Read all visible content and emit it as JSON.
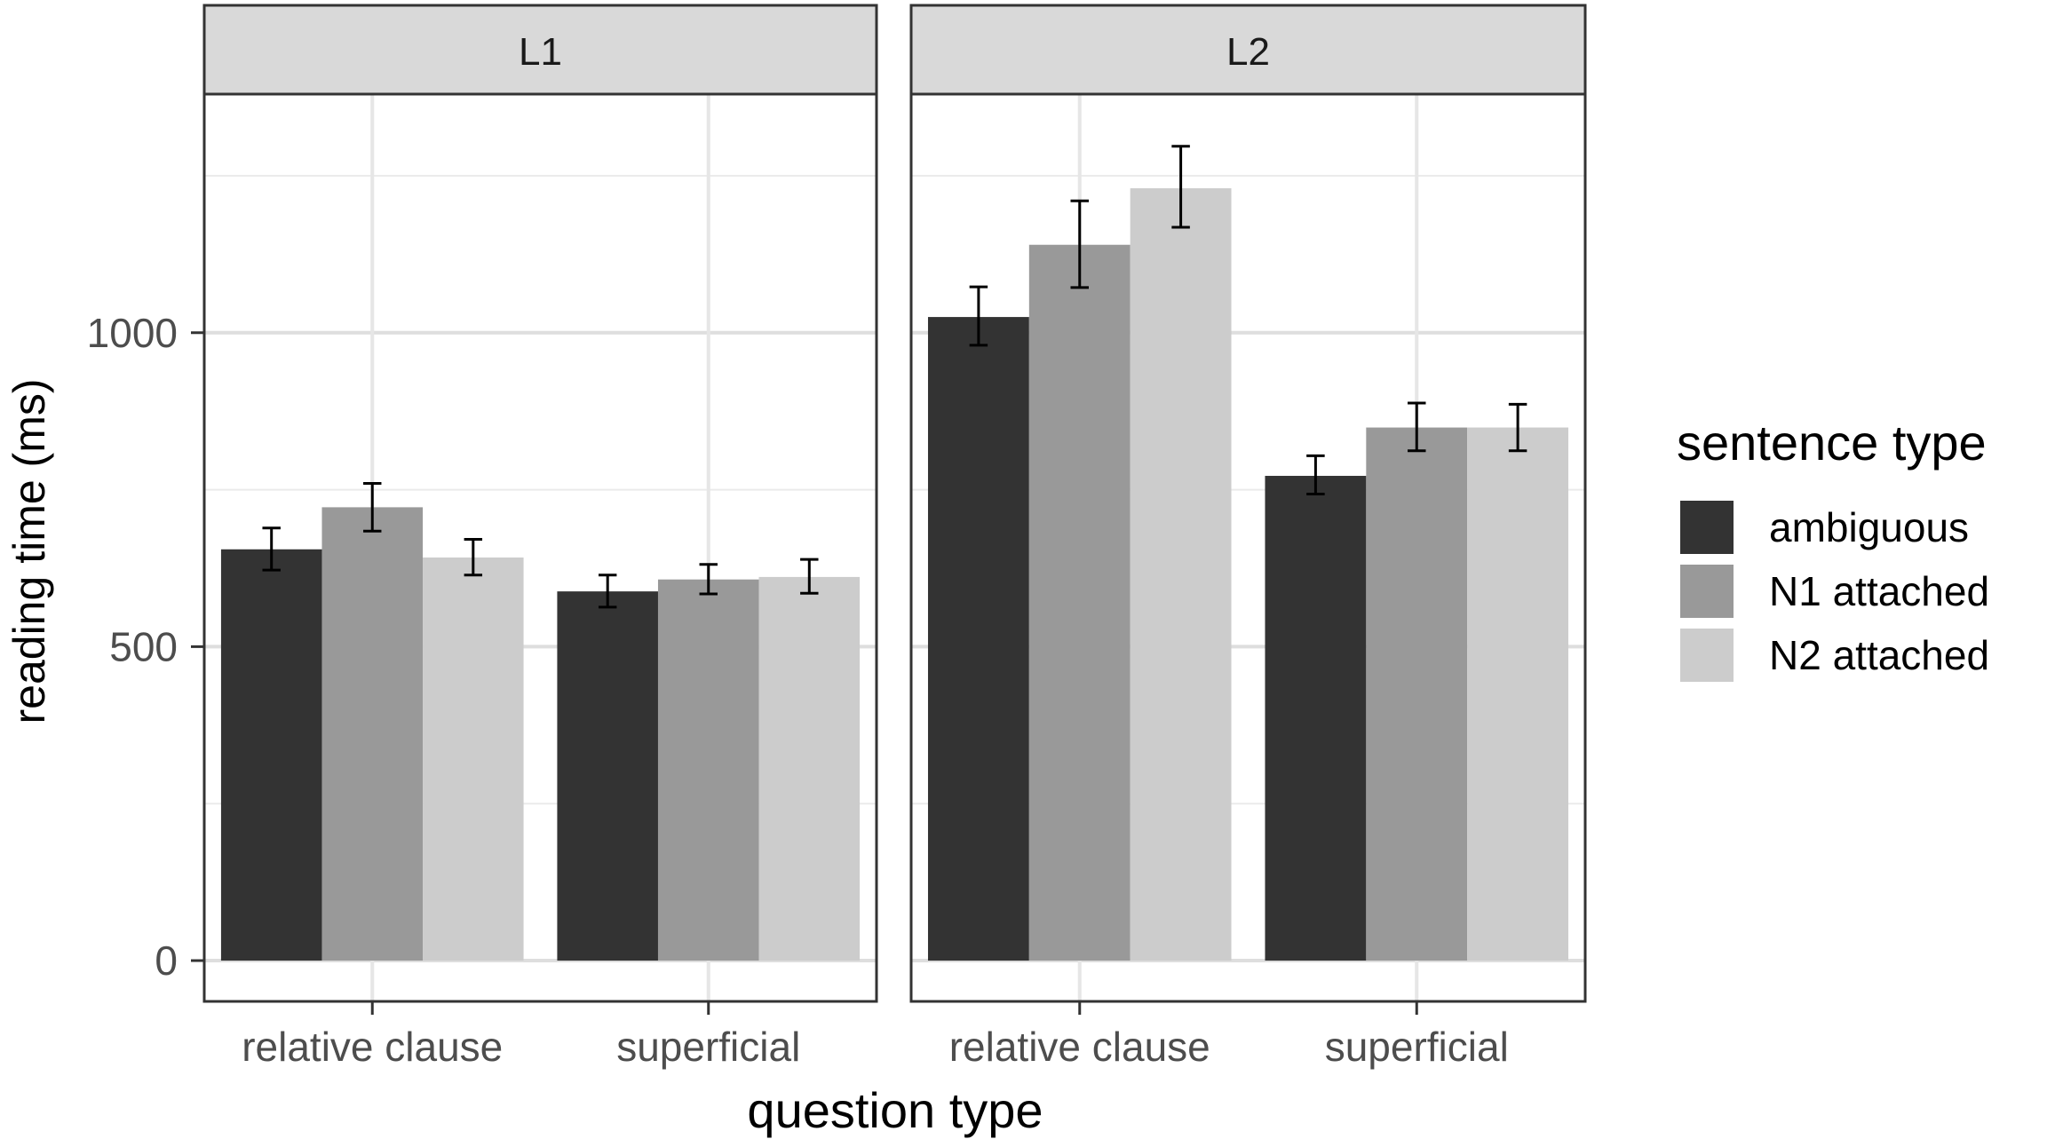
{
  "chart_data": {
    "type": "bar",
    "facets": [
      "L1",
      "L2"
    ],
    "categories": [
      "relative clause",
      "superficial"
    ],
    "series": [
      {
        "name": "ambiguous",
        "color": "#333333",
        "values": {
          "L1": [
            655,
            588
          ],
          "L2": [
            1025,
            772
          ]
        },
        "error_low": {
          "L1": [
            622,
            563
          ],
          "L2": [
            980,
            743
          ]
        },
        "error_high": {
          "L1": [
            689,
            614
          ],
          "L2": [
            1073,
            804
          ]
        }
      },
      {
        "name": "N1 attached",
        "color": "#999999",
        "values": {
          "L1": [
            722,
            607
          ],
          "L2": [
            1140,
            849
          ]
        },
        "error_low": {
          "L1": [
            684,
            584
          ],
          "L2": [
            1072,
            812
          ]
        },
        "error_high": {
          "L1": [
            760,
            631
          ],
          "L2": [
            1210,
            888
          ]
        }
      },
      {
        "name": "N2 attached",
        "color": "#cccccc",
        "values": {
          "L1": [
            642,
            611
          ],
          "L2": [
            1230,
            849
          ]
        },
        "error_low": {
          "L1": [
            614,
            585
          ],
          "L2": [
            1168,
            812
          ]
        },
        "error_high": {
          "L1": [
            671,
            639
          ],
          "L2": [
            1297,
            886
          ]
        }
      }
    ],
    "xlabel": "question type",
    "ylabel": "reading time (ms)",
    "ylim": [
      -65,
      1380
    ],
    "yticks": [
      0,
      500,
      1000
    ],
    "ytick_labels": [
      "0",
      "500",
      "1000"
    ],
    "legend": {
      "title": "sentence type",
      "position": "right"
    },
    "grid": true
  }
}
